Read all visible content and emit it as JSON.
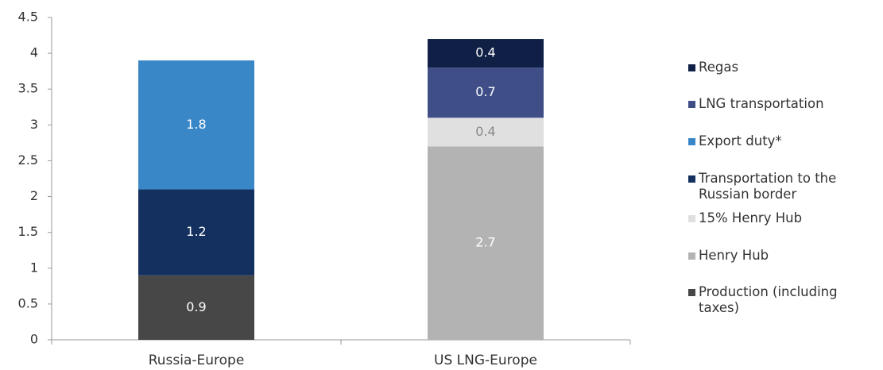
{
  "chart_data": {
    "type": "stacked_bar",
    "categories": [
      "Russia-Europe",
      "US LNG-Europe"
    ],
    "series": [
      {
        "name": "Production (including taxes)",
        "color": "#474747",
        "values": [
          0.9,
          null
        ]
      },
      {
        "name": "Henry Hub",
        "color": "#b3b3b3",
        "values": [
          null,
          2.7
        ]
      },
      {
        "name": "15%  Henry Hub",
        "color": "#e0e0e0",
        "values": [
          null,
          0.4
        ]
      },
      {
        "name": "Transportation to the Russian border",
        "color": "#14305f",
        "values": [
          1.2,
          null
        ]
      },
      {
        "name": "Export duty*",
        "color": "#3a87c8",
        "values": [
          1.8,
          null
        ]
      },
      {
        "name": "LNG transportation",
        "color": "#3f4e87",
        "values": [
          null,
          0.7
        ]
      },
      {
        "name": "Regas",
        "color": "#0f1f45",
        "values": [
          null,
          0.4
        ]
      }
    ],
    "ylim": [
      0,
      4.5
    ],
    "yticks": [
      0,
      0.5,
      1,
      1.5,
      2,
      2.5,
      3,
      3.5,
      4,
      4.5
    ],
    "grid": false,
    "legend": "right"
  }
}
